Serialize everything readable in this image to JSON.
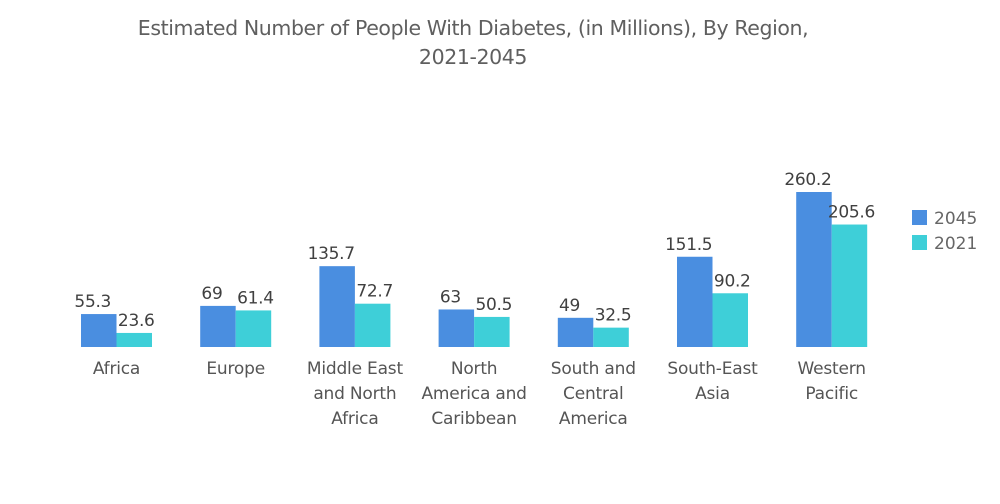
{
  "chart_data": {
    "type": "bar",
    "title_lines": [
      "Estimated Number of People With Diabetes, (in Millions), By Region,",
      "2021-2045"
    ],
    "title": "Estimated Number of People With Diabetes, (in Millions), By Region, 2021-2045",
    "xlabel": "",
    "ylabel": "",
    "ylim": [
      0,
      260.2
    ],
    "grid": false,
    "legend_position": "right",
    "categories": [
      [
        "Africa"
      ],
      [
        "Europe"
      ],
      [
        "Middle East",
        "and North",
        "Africa"
      ],
      [
        "North",
        "America and",
        "Caribbean"
      ],
      [
        "South and",
        "Central",
        "America"
      ],
      [
        "South-East",
        "Asia"
      ],
      [
        "Western",
        "Pacific"
      ]
    ],
    "series": [
      {
        "name": "2045",
        "color": "#4a8ee0",
        "values": [
          55.3,
          69,
          135.7,
          63,
          49,
          151.5,
          260.2
        ],
        "labels": [
          "55.3",
          "69",
          "135.7",
          "63",
          "49",
          "151.5",
          "260.2"
        ]
      },
      {
        "name": "2021",
        "color": "#3ecfd8",
        "values": [
          23.6,
          61.4,
          72.7,
          50.5,
          32.5,
          90.2,
          205.6
        ],
        "labels": [
          "23.6",
          "61.4",
          "72.7",
          "50.5",
          "32.5",
          "90.2",
          "205.6"
        ]
      }
    ]
  }
}
